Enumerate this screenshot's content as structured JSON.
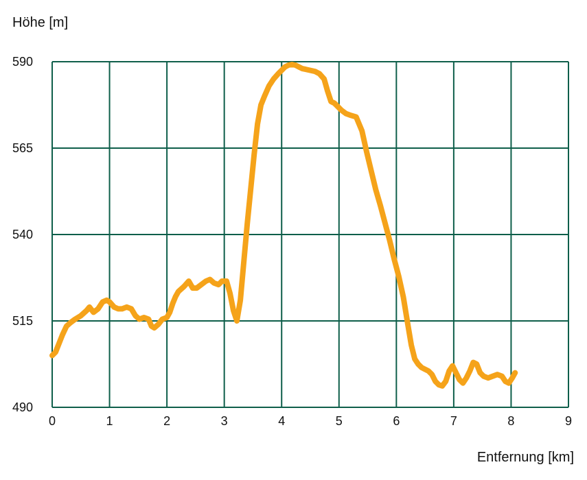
{
  "chart_data": {
    "type": "line",
    "title": "",
    "xlabel": "Entfernung [km]",
    "ylabel": "Höhe [m]",
    "xlim": [
      0,
      9
    ],
    "ylim": [
      490,
      590
    ],
    "x_ticks": [
      "0",
      "1",
      "2",
      "3",
      "4",
      "5",
      "6",
      "7",
      "8",
      "9"
    ],
    "y_ticks": [
      "490",
      "515",
      "540",
      "565",
      "590"
    ],
    "grid": true,
    "legend": "none",
    "colors": {
      "line": "#F5A31A",
      "grid": "#0E5E4A",
      "background": "#FFFFFF"
    },
    "series": [
      {
        "x": [
          0,
          0.06,
          0.12,
          0.18,
          0.25,
          0.32,
          0.4,
          0.5,
          0.6,
          0.65,
          0.72,
          0.8,
          0.88,
          0.95,
          1.0,
          1.08,
          1.15,
          1.22,
          1.3,
          1.38,
          1.45,
          1.52,
          1.6,
          1.68,
          1.73,
          1.78,
          1.85,
          1.92,
          2.0,
          2.05,
          2.1,
          2.15,
          2.2,
          2.3,
          2.38,
          2.45,
          2.52,
          2.6,
          2.68,
          2.75,
          2.82,
          2.9,
          2.96,
          3.04,
          3.1,
          3.16,
          3.22,
          3.28,
          3.34,
          3.4,
          3.46,
          3.52,
          3.58,
          3.64,
          3.7,
          3.78,
          3.86,
          3.94,
          4.0,
          4.06,
          4.12,
          4.18,
          4.24,
          4.3,
          4.36,
          4.42,
          4.5,
          4.58,
          4.66,
          4.74,
          4.8,
          4.86,
          4.92,
          4.98,
          5.04,
          5.12,
          5.2,
          5.3,
          5.4,
          5.48,
          5.56,
          5.64,
          5.72,
          5.8,
          5.88,
          5.96,
          6.04,
          6.12,
          6.2,
          6.26,
          6.32,
          6.38,
          6.44,
          6.5,
          6.56,
          6.62,
          6.68,
          6.74,
          6.8,
          6.86,
          6.92,
          6.98,
          7.04,
          7.1,
          7.16,
          7.22,
          7.28,
          7.34,
          7.4,
          7.46,
          7.52,
          7.6,
          7.68,
          7.76,
          7.84,
          7.9,
          7.96,
          8.02,
          8.07
        ],
        "y": [
          505,
          506,
          508.5,
          511,
          513.5,
          514.5,
          515.5,
          516.5,
          518,
          519,
          517.5,
          518.5,
          520.5,
          521,
          520.5,
          519,
          518.5,
          518.5,
          519,
          518.5,
          516.5,
          515.5,
          516,
          515.5,
          513.5,
          513,
          514,
          515.5,
          516,
          517.5,
          520,
          522,
          523.5,
          525,
          526.5,
          524.5,
          524.5,
          525.5,
          526.5,
          527,
          526,
          525.5,
          526.5,
          526.5,
          523,
          518,
          515,
          521,
          532,
          543,
          553,
          563,
          572,
          577.5,
          580,
          583,
          585,
          586.5,
          587.5,
          588.5,
          589,
          589.2,
          589,
          588.5,
          588,
          587.8,
          587.5,
          587.2,
          586.5,
          585,
          581.5,
          578.5,
          578,
          577,
          576,
          575,
          574.5,
          574,
          570,
          564,
          558.5,
          553,
          548.5,
          543.5,
          538.5,
          533,
          528,
          522,
          514,
          508,
          504,
          502.5,
          501.5,
          501,
          500.5,
          499.5,
          497.5,
          496.5,
          496.2,
          497.5,
          500.5,
          502,
          500,
          498,
          497,
          498.5,
          500.5,
          503,
          502.5,
          500,
          499,
          498.5,
          499,
          499.5,
          499,
          497.5,
          497,
          498.5,
          500
        ]
      }
    ]
  }
}
